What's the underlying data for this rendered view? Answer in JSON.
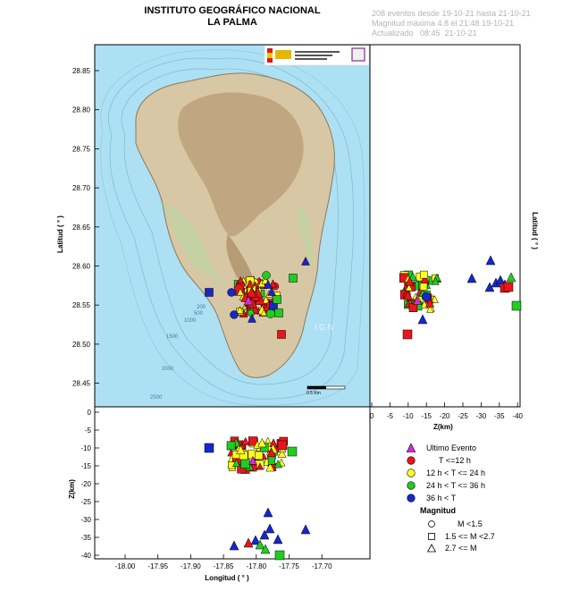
{
  "header": {
    "title_line1": "INSTITUTO GEOGRÁFICO NACIONAL",
    "title_line2": "LA PALMA",
    "info_line1": "208 eventos desde 19-10-21 hasta 21-10-21",
    "info_line2": "Magnitud máxima 4.8 el 21:48 19-10-21",
    "info_line3": "Actualizado   08:45  21-10-21"
  },
  "map": {
    "lat_ticks": [
      "28.85",
      "28.80",
      "28.75",
      "28.70",
      "28.65",
      "28.60",
      "28.55",
      "28.50",
      "28.45"
    ],
    "lat_label": "Latitud ( ° )",
    "lon_ticks": [
      "-18.00",
      "-17.95",
      "-17.90",
      "-17.85",
      "-17.80",
      "-17.75",
      "-17.70"
    ],
    "lon_label": "Longitud ( ° )",
    "z_ticks": [
      "0",
      "-5",
      "-10",
      "-15",
      "-20",
      "-25",
      "-30",
      "-35",
      "-40"
    ],
    "z_label": "Z(km)",
    "scale_label": "0     5 Km",
    "watermark": "I G N",
    "depth_labels": [
      "200",
      "500",
      "1000",
      "1500",
      "2000",
      "2500"
    ]
  },
  "legend": {
    "last_event": "Ultimo Evento",
    "t12": "T <=12 h",
    "t24": "12 h  < T <= 24 h",
    "t36": "24 h  < T <= 36 h",
    "t36plus": "36 h <  T",
    "mag_title": "Magnitud",
    "m1": "M <1.5",
    "m2": "1.5 <= M <2.7",
    "m3": "2.7 <= M"
  },
  "colors": {
    "ocean": "#aee0f4",
    "island": "#d8c7a4",
    "red": "#e8161b",
    "yellow": "#ffff22",
    "green": "#22cc22",
    "blue": "#1628c8",
    "magenta": "#d02fd0"
  }
}
